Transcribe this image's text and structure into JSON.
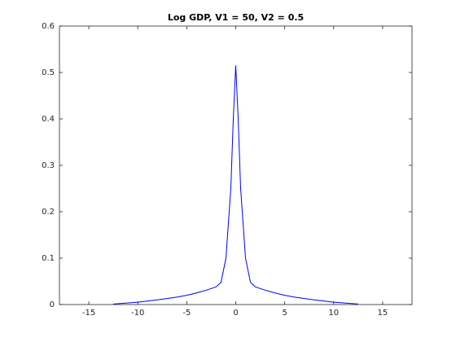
{
  "chart_data": {
    "type": "line",
    "title": "Log GDP, V1 = 50, V2 = 0.5",
    "x": [
      -12.5,
      -10,
      -8,
      -6,
      -5,
      -4,
      -3,
      -2,
      -1.5,
      -1,
      -0.5,
      -0.25,
      0,
      0.25,
      0.5,
      1,
      1.5,
      2,
      3,
      4,
      5,
      6,
      8,
      10,
      12.5
    ],
    "series": [
      {
        "color": "#0000ff",
        "values": [
          0.001,
          0.005,
          0.01,
          0.016,
          0.02,
          0.025,
          0.031,
          0.038,
          0.048,
          0.1,
          0.25,
          0.4,
          0.515,
          0.4,
          0.25,
          0.1,
          0.048,
          0.038,
          0.031,
          0.025,
          0.02,
          0.016,
          0.01,
          0.005,
          0.001
        ]
      }
    ],
    "xlim": [
      -18,
      18
    ],
    "xticks": [
      -15,
      -10,
      -5,
      0,
      5,
      10,
      15
    ],
    "ylim": [
      0,
      0.6
    ],
    "yticks": [
      0,
      0.1,
      0.2,
      0.3,
      0.4,
      0.5,
      0.6
    ]
  }
}
